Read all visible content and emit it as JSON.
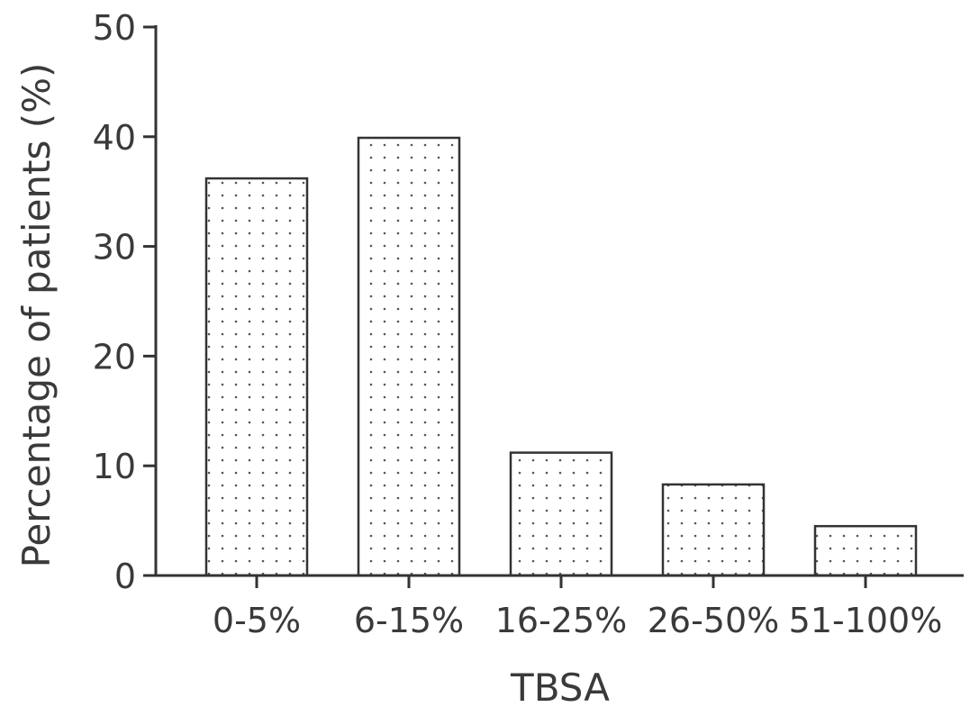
{
  "chart_data": {
    "type": "bar",
    "title": "",
    "xlabel": "TBSA",
    "ylabel": "Percentage of patients (%)",
    "categories": [
      "0-5%",
      "6-15%",
      "16-25%",
      "26-50%",
      "51-100%"
    ],
    "values": [
      36.2,
      39.9,
      11.2,
      8.3,
      4.5
    ],
    "ylim": [
      0,
      50
    ],
    "yticks": [
      0,
      10,
      20,
      30,
      40,
      50
    ],
    "ytick_labels": [
      "0",
      "10",
      "20",
      "30",
      "40",
      "50"
    ],
    "grid": false,
    "legend": "none",
    "bar_fill": "dotted pattern",
    "colors": {
      "bar_fill": "#ffffff",
      "bar_stroke": "#333333",
      "dot": "#555555",
      "axis": "#333333",
      "text": "#3a3a3a"
    }
  }
}
